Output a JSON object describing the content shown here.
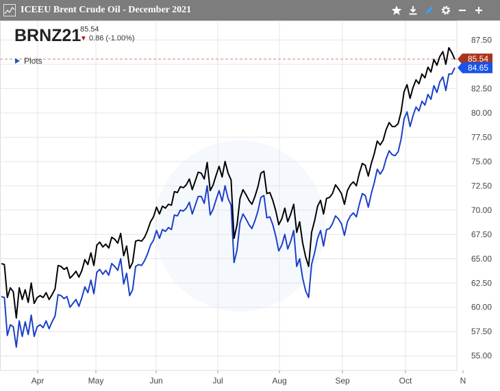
{
  "window": {
    "title": "ICEEU Brent Crude Oil - December 2021",
    "toolbar_icons": [
      "star-icon",
      "download-icon",
      "pencil-icon",
      "gear-icon",
      "minimize-icon",
      "add-icon"
    ]
  },
  "quote": {
    "symbol": "BRNZ21",
    "last": "85.54",
    "change": "0.86 (-1.00%)"
  },
  "legend": {
    "label": "Plots"
  },
  "colors": {
    "price_line": "#000000",
    "plots_line": "#1a3fc8",
    "last_tag": "#a8341c",
    "plots_tag": "#1a53e8",
    "grid": "#e4e4e4"
  },
  "chart_data": {
    "type": "line",
    "x_labels": [
      "Apr",
      "May",
      "Jun",
      "Jul",
      "Aug",
      "Sep",
      "Oct",
      "N"
    ],
    "y_ticks": [
      "87.50",
      "85.00",
      "82.50",
      "80.00",
      "77.50",
      "75.00",
      "72.50",
      "70.00",
      "67.50",
      "65.00",
      "62.50",
      "60.00",
      "57.50",
      "55.00"
    ],
    "ylim": [
      53.5,
      89.5
    ],
    "grid": true,
    "reference_line": 85.54,
    "price_tags": [
      {
        "label": "85.54",
        "value": 85.54,
        "series": "price"
      },
      {
        "label": "84.65",
        "value": 84.65,
        "series": "plots"
      }
    ],
    "series": [
      {
        "name": "BRNZ21",
        "values": [
          64.5,
          64.4,
          61.0,
          62.0,
          61.6,
          58.9,
          62.0,
          60.8,
          61.8,
          60.5,
          62.5,
          60.4,
          61.0,
          61.2,
          61.0,
          61.5,
          60.8,
          61.3,
          61.9,
          64.3,
          64.2,
          63.9,
          64.1,
          63.0,
          63.3,
          63.7,
          63.1,
          63.8,
          64.9,
          64.4,
          65.6,
          64.3,
          66.4,
          66.7,
          66.2,
          66.5,
          66.1,
          67.2,
          67.0,
          66.6,
          67.6,
          65.3,
          66.3,
          64.0,
          64.6,
          66.8,
          66.9,
          66.8,
          67.2,
          67.9,
          68.8,
          69.3,
          70.3,
          69.6,
          70.4,
          70.2,
          70.6,
          70.5,
          71.9,
          71.8,
          72.4,
          72.3,
          72.6,
          73.2,
          72.1,
          73.0,
          73.9,
          73.8,
          73.2,
          74.9,
          72.0,
          72.6,
          73.6,
          74.5,
          73.4,
          75.0,
          73.8,
          73.1,
          67.1,
          68.5,
          71.2,
          72.1,
          71.6,
          71.0,
          70.6,
          71.4,
          72.4,
          73.8,
          74.0,
          71.7,
          71.8,
          71.0,
          69.9,
          68.5,
          69.1,
          70.2,
          68.8,
          69.6,
          70.6,
          67.7,
          68.8,
          66.6,
          65.2,
          64.2,
          67.7,
          68.9,
          70.4,
          71.0,
          69.6,
          71.2,
          71.3,
          71.7,
          72.6,
          72.2,
          71.7,
          70.6,
          72.0,
          72.6,
          72.9,
          72.5,
          73.8,
          74.8,
          74.6,
          73.5,
          74.8,
          75.8,
          77.1,
          76.7,
          77.2,
          78.3,
          79.0,
          78.6,
          78.6,
          78.9,
          80.1,
          82.2,
          82.9,
          81.5,
          82.6,
          83.4,
          83.0,
          84.0,
          83.6,
          84.7,
          84.2,
          85.5,
          84.9,
          85.8,
          86.3,
          85.0,
          86.7,
          86.2,
          85.5
        ],
        "color": "#000000"
      },
      {
        "name": "Plots",
        "values": [
          61.1,
          61.0,
          57.1,
          58.2,
          58.0,
          55.9,
          58.6,
          57.0,
          58.5,
          57.2,
          59.2,
          57.0,
          58.0,
          58.2,
          57.9,
          58.6,
          57.8,
          58.5,
          59.1,
          61.3,
          61.2,
          60.9,
          61.1,
          60.0,
          60.4,
          60.8,
          60.1,
          61.0,
          62.1,
          61.5,
          62.8,
          61.4,
          63.6,
          63.9,
          63.4,
          63.8,
          63.3,
          64.5,
          64.2,
          63.8,
          65.0,
          62.4,
          63.5,
          61.2,
          61.8,
          64.2,
          64.4,
          64.3,
          64.8,
          65.5,
          66.4,
          66.9,
          67.9,
          67.1,
          68.0,
          67.8,
          68.2,
          68.0,
          69.5,
          69.4,
          70.0,
          69.9,
          70.2,
          70.8,
          69.6,
          70.5,
          71.4,
          71.4,
          70.7,
          72.5,
          69.5,
          70.1,
          71.1,
          72.0,
          70.9,
          72.5,
          71.2,
          70.5,
          64.6,
          65.9,
          68.7,
          69.6,
          69.1,
          68.5,
          68.1,
          68.9,
          69.9,
          71.3,
          71.5,
          69.2,
          69.3,
          68.5,
          67.3,
          65.8,
          66.4,
          67.5,
          66.0,
          66.8,
          67.9,
          64.2,
          65.0,
          63.0,
          61.7,
          61.0,
          64.4,
          65.6,
          67.1,
          67.9,
          66.3,
          68.0,
          68.1,
          68.6,
          69.4,
          69.1,
          68.6,
          67.4,
          68.8,
          69.4,
          69.7,
          69.3,
          70.6,
          71.7,
          71.5,
          70.3,
          71.7,
          72.8,
          74.2,
          73.7,
          74.2,
          75.3,
          76.1,
          75.7,
          75.6,
          76.0,
          77.3,
          79.4,
          80.1,
          78.6,
          79.7,
          80.6,
          80.2,
          81.2,
          80.8,
          81.9,
          81.4,
          82.8,
          82.1,
          83.2,
          83.7,
          82.3,
          84.0,
          84.0,
          84.65
        ],
        "color": "#1a3fc8"
      }
    ]
  }
}
